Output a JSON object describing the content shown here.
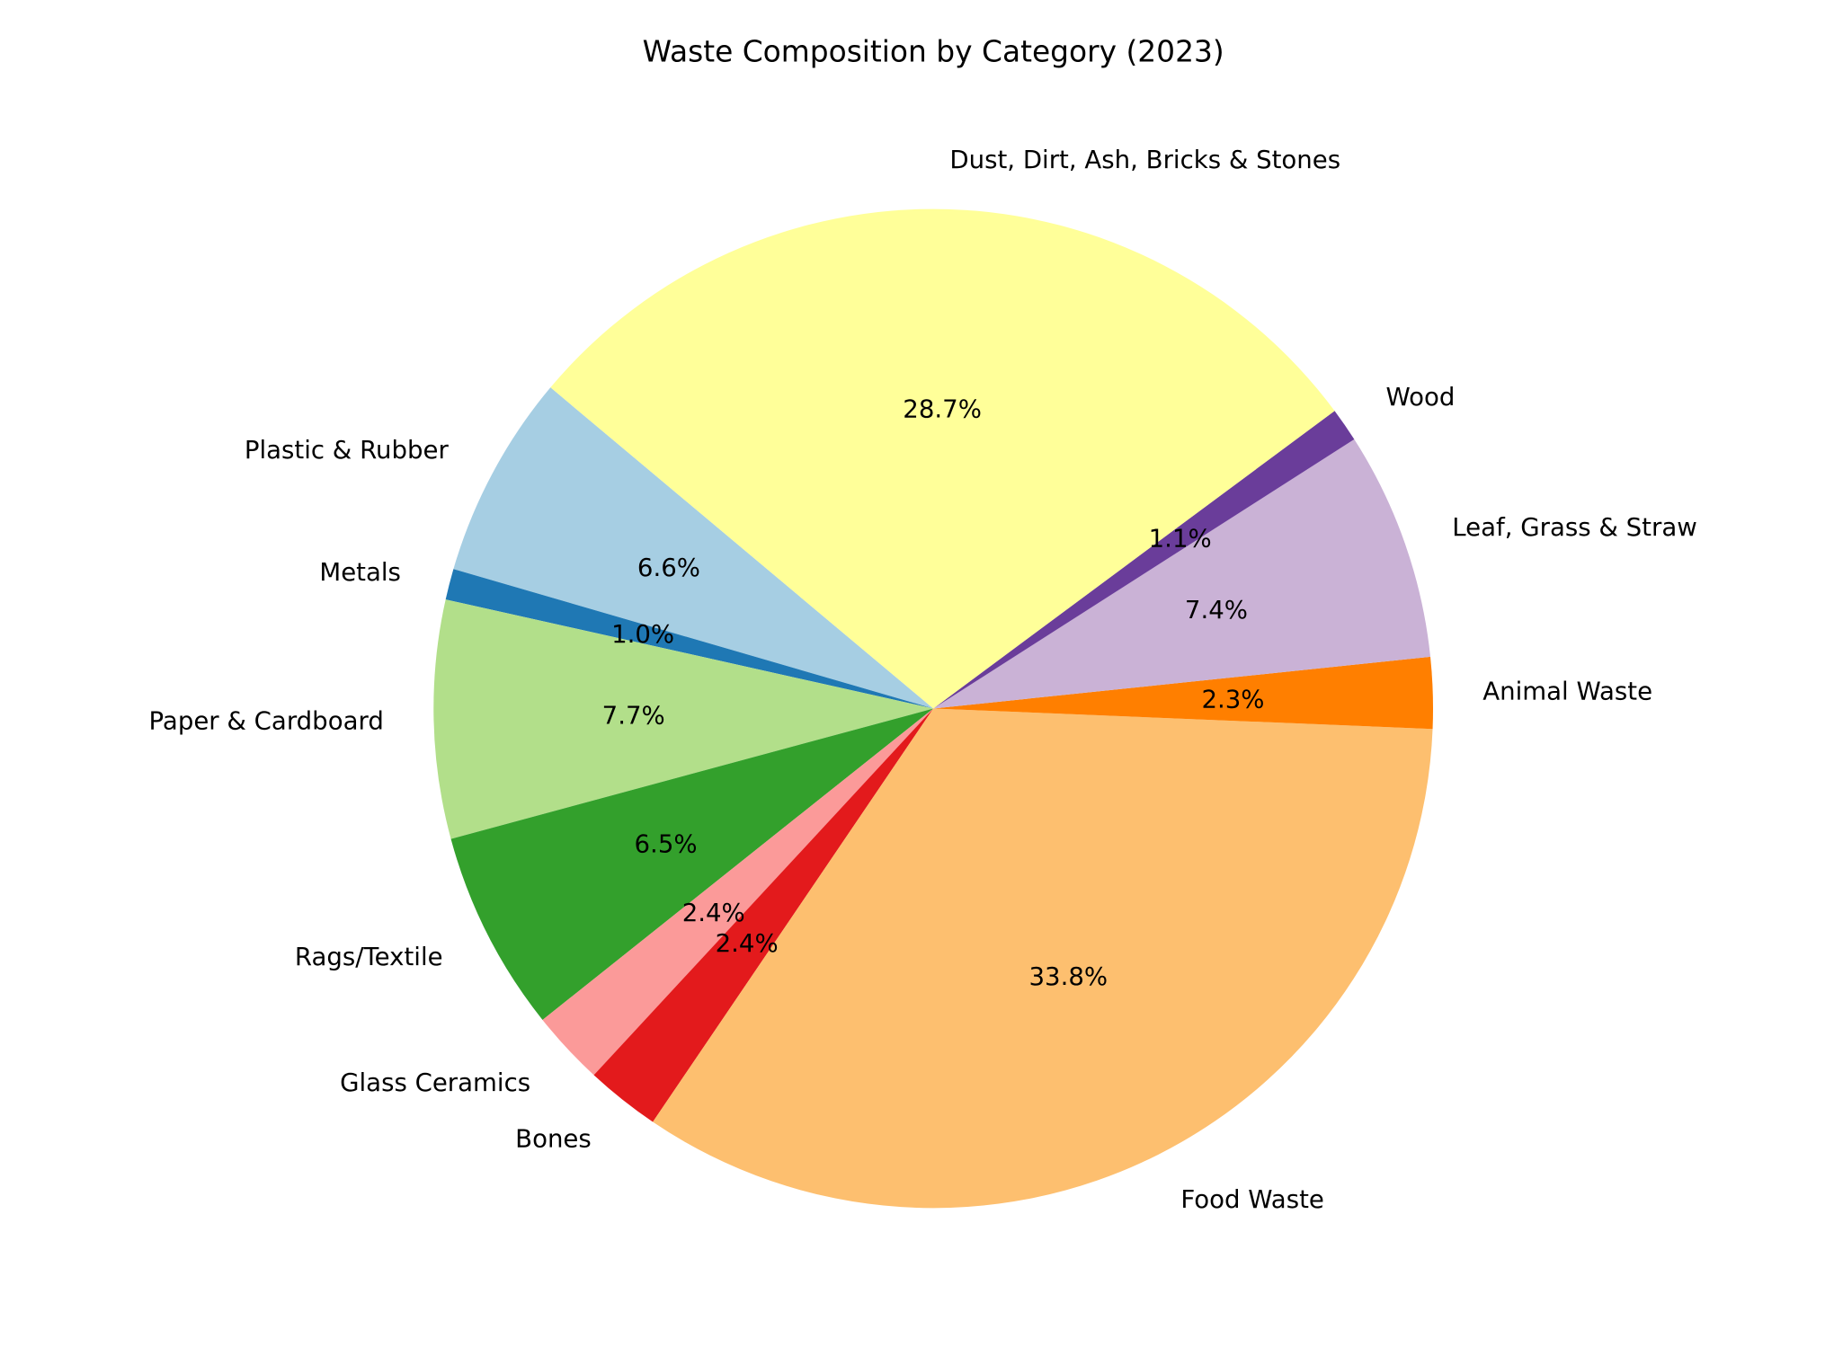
{
  "chart_data": {
    "type": "pie",
    "title": "Waste Composition by Category (2023)",
    "start_angle_deg": 140,
    "direction": "counterclockwise",
    "slices": [
      {
        "label": "Plastic & Rubber",
        "value": 6.6,
        "pct_label": "6.6%",
        "color": "#a6cee3"
      },
      {
        "label": "Metals",
        "value": 1.0,
        "pct_label": "1.0%",
        "color": "#1f78b4"
      },
      {
        "label": "Paper & Cardboard",
        "value": 7.7,
        "pct_label": "7.7%",
        "color": "#b2df8a"
      },
      {
        "label": "Rags/Textile",
        "value": 6.5,
        "pct_label": "6.5%",
        "color": "#33a02c"
      },
      {
        "label": "Glass Ceramics",
        "value": 2.4,
        "pct_label": "2.4%",
        "color": "#fb9a99"
      },
      {
        "label": "Bones",
        "value": 2.4,
        "pct_label": "2.4%",
        "color": "#e31a1c"
      },
      {
        "label": "Food Waste",
        "value": 33.8,
        "pct_label": "33.8%",
        "color": "#fdbf6f"
      },
      {
        "label": "Animal Waste",
        "value": 2.3,
        "pct_label": "2.3%",
        "color": "#ff7f00"
      },
      {
        "label": "Leaf, Grass & Straw",
        "value": 7.4,
        "pct_label": "7.4%",
        "color": "#cab2d6"
      },
      {
        "label": "Wood",
        "value": 1.1,
        "pct_label": "1.1%",
        "color": "#6a3d9a"
      },
      {
        "label": "Dust, Dirt, Ash, Bricks & Stones",
        "value": 28.7,
        "pct_label": "28.7%",
        "color": "#ffff99"
      }
    ]
  }
}
